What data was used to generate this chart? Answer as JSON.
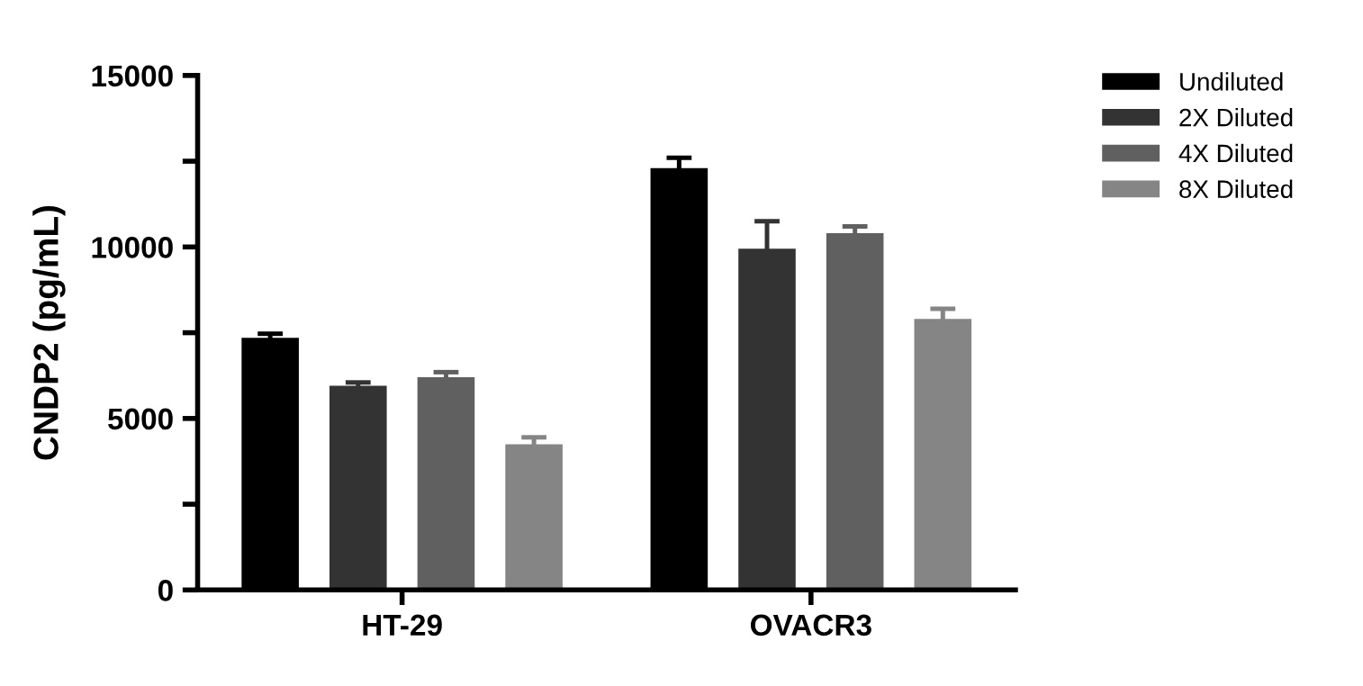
{
  "chart_data": {
    "type": "bar",
    "ylabel": "CNDP2 (pg/mL)",
    "categories": [
      "HT-29",
      "OVACR3"
    ],
    "series": [
      {
        "name": "Undiluted",
        "color": "#000000",
        "values": [
          7350,
          12300
        ],
        "errors": [
          120,
          300
        ]
      },
      {
        "name": "2X Diluted",
        "color": "#333333",
        "values": [
          5950,
          9950
        ],
        "errors": [
          100,
          800
        ]
      },
      {
        "name": "4X Diluted",
        "color": "#606060",
        "values": [
          6200,
          10400
        ],
        "errors": [
          150,
          200
        ]
      },
      {
        "name": "8X Diluted",
        "color": "#858585",
        "values": [
          4250,
          7900
        ],
        "errors": [
          200,
          300
        ]
      }
    ],
    "ylim": [
      0,
      15000
    ],
    "yticks": [
      0,
      {
        "value": 2500,
        "label": null
      },
      5000,
      {
        "value": 7500,
        "label": null
      },
      10000,
      {
        "value": 12500,
        "label": null
      },
      15000
    ],
    "grid": false,
    "legend": "right"
  }
}
